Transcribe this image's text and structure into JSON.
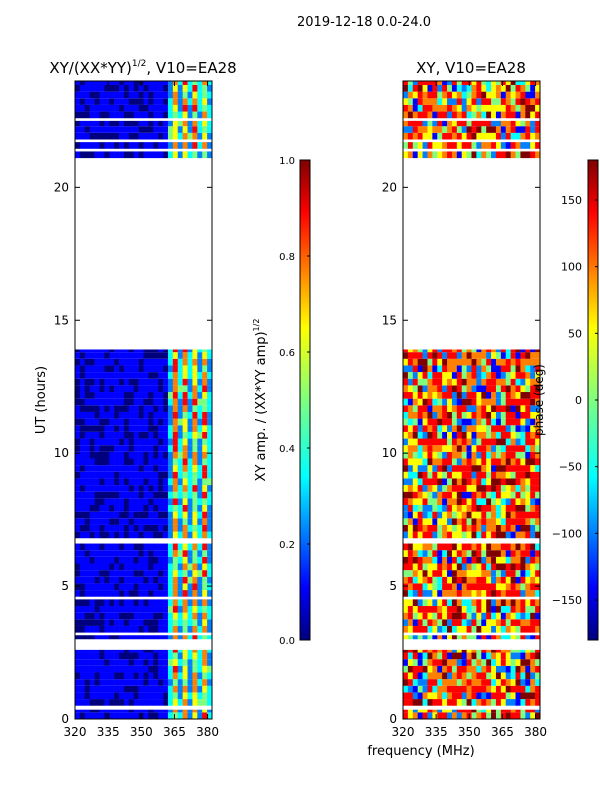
{
  "figure_title": "2019-12-18 0.0-24.0",
  "shared_xlabel": "frequency (MHz)",
  "colors": {
    "background": "#ffffff",
    "axis": "#000000",
    "jet": [
      "#00007f",
      "#0000ff",
      "#007fff",
      "#00ffff",
      "#7fff7f",
      "#ffff00",
      "#ff7f00",
      "#ff0000",
      "#7f0000"
    ]
  },
  "chart_data": [
    {
      "type": "heatmap",
      "title_main": "XY/(XX*YY)",
      "title_sup": "1/2",
      "title_tail": ", V10=EA28",
      "xlabel": "",
      "ylabel": "UT (hours)",
      "xlim": [
        320,
        382
      ],
      "ylim": [
        0,
        24
      ],
      "xticks": [
        320,
        335,
        350,
        365,
        380
      ],
      "yticks": [
        0,
        5,
        10,
        15,
        20
      ],
      "colorbar": {
        "label_main": "XY amp. / (XX*YY amp)",
        "label_sup": "1/2",
        "range": [
          0.0,
          1.0
        ],
        "ticks": [
          0.0,
          0.2,
          0.4,
          0.6,
          0.8,
          1.0
        ],
        "tick_labels": [
          "0.0",
          "0.2",
          "0.4",
          "0.6",
          "0.8",
          "1.0"
        ]
      },
      "data_hour_ranges": [
        [
          0.0,
          0.35
        ],
        [
          0.5,
          2.6
        ],
        [
          3.0,
          3.15
        ],
        [
          3.25,
          4.5
        ],
        [
          4.6,
          6.6
        ],
        [
          6.8,
          13.9
        ],
        [
          21.1,
          21.35
        ],
        [
          21.45,
          21.7
        ],
        [
          21.8,
          22.5
        ],
        [
          22.6,
          24.0
        ]
      ],
      "value_description": "mostly ~0.05 (dark blue); 360-380 MHz band around 0.3-0.8 with peaks near 365, 370, 375 and 379 MHz"
    },
    {
      "type": "heatmap",
      "title_main": "XY, V10=EA28",
      "xlabel": "",
      "ylabel": "",
      "xlim": [
        320,
        382
      ],
      "ylim": [
        0,
        24
      ],
      "xticks": [
        320,
        335,
        350,
        365,
        380
      ],
      "yticks": [
        0,
        5,
        10,
        15,
        20
      ],
      "colorbar": {
        "label_main": "phase (deg)",
        "range": [
          -180,
          180
        ],
        "ticks": [
          150,
          100,
          50,
          0,
          -50,
          -100,
          -150
        ],
        "tick_labels": [
          "150",
          "100",
          "50",
          "0",
          "−50",
          "−100",
          "−150"
        ]
      },
      "data_hour_ranges": [
        [
          0.0,
          0.35
        ],
        [
          0.5,
          2.6
        ],
        [
          3.0,
          3.15
        ],
        [
          3.25,
          4.5
        ],
        [
          4.6,
          6.6
        ],
        [
          6.8,
          13.9
        ],
        [
          21.1,
          21.35
        ],
        [
          21.45,
          21.7
        ],
        [
          21.8,
          22.5
        ],
        [
          22.6,
          24.0
        ]
      ],
      "value_description": "phases spread over -180..180 deg, predominantly red/orange with blue and yellow patches"
    }
  ]
}
